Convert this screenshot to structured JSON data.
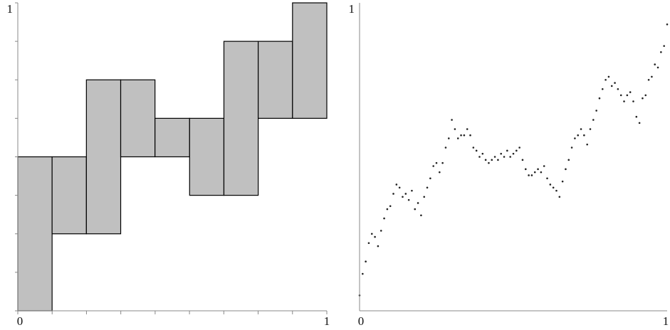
{
  "chart_data": [
    {
      "type": "bar",
      "title": "",
      "xlabel": "",
      "ylabel": "",
      "xlim": [
        0,
        1
      ],
      "ylim": [
        0,
        1
      ],
      "x_tick_labels": [
        "0",
        "1"
      ],
      "y_tick_labels": [
        "1"
      ],
      "bar_fill": "#c0c0c0",
      "bar_stroke": "#000000",
      "axis_color": "#888888",
      "grid": false,
      "bars": [
        {
          "x0": 0.0,
          "x1": 0.111,
          "y0": 0.0,
          "y1": 0.5
        },
        {
          "x0": 0.111,
          "x1": 0.222,
          "y0": 0.25,
          "y1": 0.5
        },
        {
          "x0": 0.222,
          "x1": 0.333,
          "y0": 0.25,
          "y1": 0.75
        },
        {
          "x0": 0.333,
          "x1": 0.444,
          "y0": 0.5,
          "y1": 0.75
        },
        {
          "x0": 0.444,
          "x1": 0.556,
          "y0": 0.5,
          "y1": 0.625
        },
        {
          "x0": 0.556,
          "x1": 0.667,
          "y0": 0.375,
          "y1": 0.625
        },
        {
          "x0": 0.667,
          "x1": 0.778,
          "y0": 0.375,
          "y1": 0.875
        },
        {
          "x0": 0.778,
          "x1": 0.889,
          "y0": 0.625,
          "y1": 0.875
        },
        {
          "x0": 0.889,
          "x1": 1.0,
          "y0": 0.625,
          "y1": 1.0
        }
      ]
    },
    {
      "type": "scatter",
      "title": "",
      "xlabel": "",
      "ylabel": "",
      "xlim": [
        0,
        1
      ],
      "ylim": [
        0,
        1
      ],
      "x_tick_labels": [
        "0",
        "1"
      ],
      "y_tick_labels": [
        "1"
      ],
      "point_color": "#222222",
      "axis_color": "#888888",
      "grid": false,
      "description_free": true,
      "x": [
        0.0,
        0.01,
        0.02,
        0.03,
        0.04,
        0.05,
        0.06,
        0.07,
        0.08,
        0.09,
        0.1,
        0.11,
        0.12,
        0.13,
        0.14,
        0.15,
        0.16,
        0.17,
        0.18,
        0.19,
        0.2,
        0.21,
        0.22,
        0.23,
        0.24,
        0.25,
        0.26,
        0.27,
        0.28,
        0.29,
        0.3,
        0.31,
        0.32,
        0.33,
        0.34,
        0.35,
        0.36,
        0.37,
        0.38,
        0.39,
        0.4,
        0.41,
        0.42,
        0.43,
        0.44,
        0.45,
        0.46,
        0.47,
        0.48,
        0.49,
        0.5,
        0.51,
        0.52,
        0.53,
        0.54,
        0.55,
        0.56,
        0.57,
        0.58,
        0.59,
        0.6,
        0.61,
        0.62,
        0.63,
        0.64,
        0.65,
        0.66,
        0.67,
        0.68,
        0.69,
        0.7,
        0.71,
        0.72,
        0.73,
        0.74,
        0.75,
        0.76,
        0.77,
        0.78,
        0.79,
        0.8,
        0.81,
        0.82,
        0.83,
        0.84,
        0.85,
        0.86,
        0.87,
        0.88,
        0.89,
        0.9,
        0.91,
        0.92,
        0.93,
        0.94,
        0.95,
        0.96,
        0.97,
        0.98,
        0.99,
        1.0
      ],
      "y": [
        0.05,
        0.12,
        0.16,
        0.22,
        0.25,
        0.24,
        0.21,
        0.26,
        0.3,
        0.33,
        0.34,
        0.38,
        0.41,
        0.4,
        0.37,
        0.38,
        0.36,
        0.39,
        0.33,
        0.35,
        0.31,
        0.37,
        0.4,
        0.43,
        0.47,
        0.48,
        0.45,
        0.48,
        0.53,
        0.56,
        0.62,
        0.59,
        0.56,
        0.57,
        0.57,
        0.59,
        0.57,
        0.53,
        0.52,
        0.5,
        0.51,
        0.49,
        0.48,
        0.49,
        0.5,
        0.49,
        0.51,
        0.5,
        0.52,
        0.5,
        0.51,
        0.52,
        0.53,
        0.49,
        0.46,
        0.44,
        0.44,
        0.45,
        0.46,
        0.45,
        0.47,
        0.43,
        0.41,
        0.4,
        0.39,
        0.37,
        0.42,
        0.46,
        0.49,
        0.53,
        0.56,
        0.57,
        0.59,
        0.57,
        0.54,
        0.59,
        0.62,
        0.65,
        0.69,
        0.72,
        0.75,
        0.76,
        0.73,
        0.74,
        0.72,
        0.7,
        0.68,
        0.7,
        0.71,
        0.68,
        0.63,
        0.61,
        0.69,
        0.7,
        0.75,
        0.76,
        0.8,
        0.79,
        0.84,
        0.86,
        0.93
      ]
    }
  ]
}
